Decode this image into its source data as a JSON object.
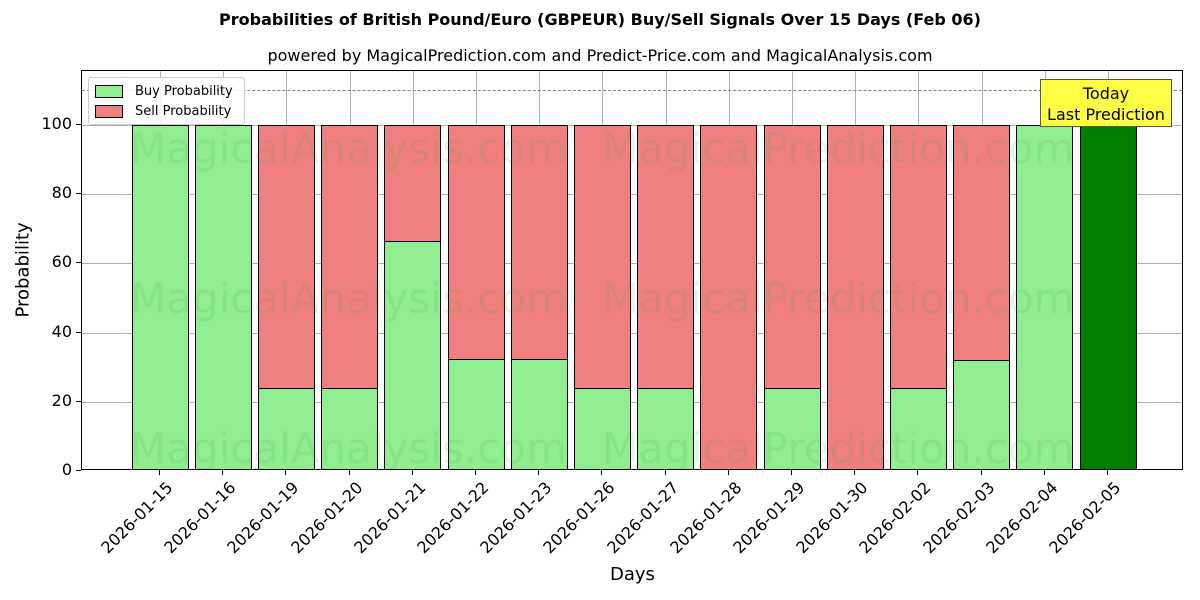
{
  "chart_data": {
    "type": "bar",
    "stacked": true,
    "title": "Probabilities of British Pound/Euro (GBPEUR) Buy/Sell Signals Over 15 Days (Feb 06)",
    "subtitle": "powered by MagicalPrediction.com and Predict-Price.com and MagicalAnalysis.com",
    "xlabel": "Days",
    "ylabel": "Probability",
    "ylim": [
      0,
      115
    ],
    "yticks": [
      0,
      20,
      40,
      60,
      80,
      100
    ],
    "reference_line": 110,
    "grid": true,
    "legend_position": "upper left",
    "categories": [
      "2026-01-15",
      "2026-01-16",
      "2026-01-19",
      "2026-01-20",
      "2026-01-21",
      "2026-01-22",
      "2026-01-23",
      "2026-01-26",
      "2026-01-27",
      "2026-01-28",
      "2026-01-29",
      "2026-01-30",
      "2026-02-02",
      "2026-02-03",
      "2026-02-04",
      "2026-02-05"
    ],
    "series": [
      {
        "name": "Buy Probability",
        "color": "#90ee90",
        "values": [
          100,
          100,
          24,
          24,
          66.5,
          32.5,
          32.5,
          24,
          24,
          0,
          24,
          0,
          24,
          32,
          100,
          100
        ]
      },
      {
        "name": "Sell Probability",
        "color": "#f08080",
        "values": [
          0,
          0,
          76,
          76,
          33.5,
          67.5,
          67.5,
          76,
          76,
          100,
          76,
          100,
          76,
          68,
          0,
          0
        ]
      }
    ],
    "highlight": {
      "category": "2026-02-05",
      "color": "#008000"
    },
    "annotation": {
      "line1": "Today",
      "line2": "Last Prediction",
      "background": "#ffff44"
    }
  },
  "legend": {
    "buy": "Buy Probability",
    "sell": "Sell Probability"
  },
  "watermarks": [
    "MagicalAnalysis.com",
    "MagicalPrediction.com"
  ]
}
